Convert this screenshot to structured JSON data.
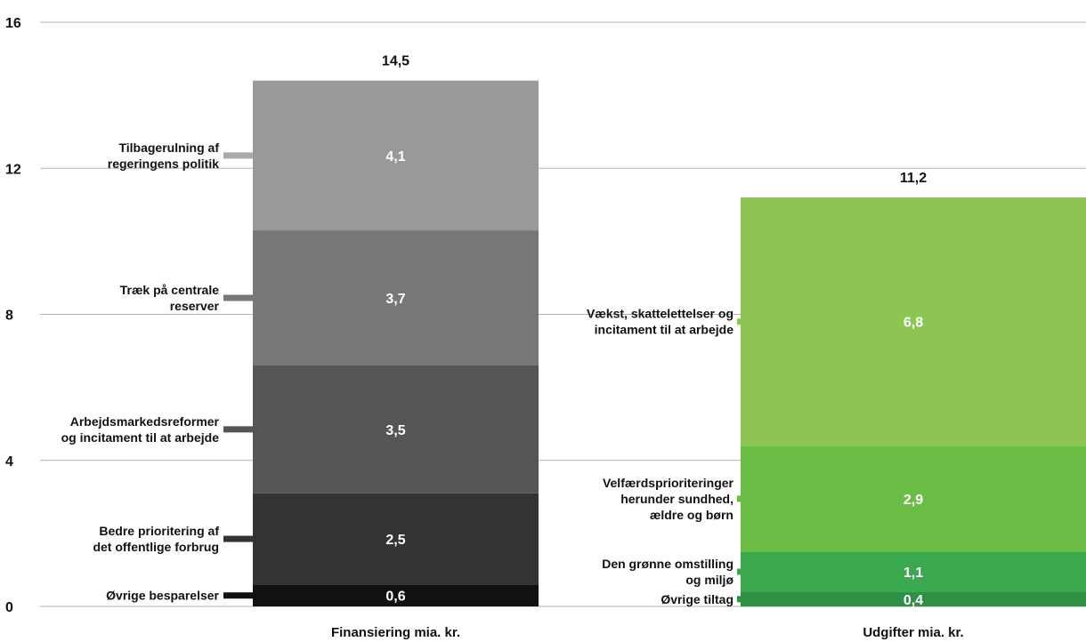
{
  "chart_data": {
    "type": "bar",
    "stacked": true,
    "ylim": [
      0,
      16
    ],
    "yticks": [
      0,
      4,
      8,
      12,
      16
    ],
    "grid": true,
    "bars": [
      {
        "category": "Finansiering mia. kr.",
        "total_label": "14,5",
        "segments": [
          {
            "name_lines": [
              "Øvrige besparelser"
            ],
            "value": 0.6,
            "value_label": "0,6",
            "color": "#111111",
            "marker_color": "#111111"
          },
          {
            "name_lines": [
              "Bedre prioritering af",
              "det offentlige forbrug"
            ],
            "value": 2.5,
            "value_label": "2,5",
            "color": "#333333",
            "marker_color": "#333333"
          },
          {
            "name_lines": [
              "Arbejdsmarkedsreformer",
              "og incitament til at arbejde"
            ],
            "value": 3.5,
            "value_label": "3,5",
            "color": "#555555",
            "marker_color": "#555555"
          },
          {
            "name_lines": [
              "Træk på centrale",
              "reserver"
            ],
            "value": 3.7,
            "value_label": "3,7",
            "color": "#777777",
            "marker_color": "#777777"
          },
          {
            "name_lines": [
              "Tilbagerulning af",
              "regeringens politik"
            ],
            "value": 4.1,
            "value_label": "4,1",
            "color": "#999999",
            "marker_color": "#aaaaaa"
          }
        ]
      },
      {
        "category": "Udgifter mia. kr.",
        "total_label": "11,2",
        "segments": [
          {
            "name_lines": [
              "Øvrige tiltag"
            ],
            "value": 0.4,
            "value_label": "0,4",
            "color": "#2f8f47",
            "marker_color": "#2f8f47"
          },
          {
            "name_lines": [
              "Den grønne omstilling",
              "og miljø"
            ],
            "value": 1.1,
            "value_label": "1,1",
            "color": "#3aa84e",
            "marker_color": "#3aa84e"
          },
          {
            "name_lines": [
              "Velfærdsprioriteringer",
              "herunder sundhed,",
              "ældre og børn"
            ],
            "value": 2.9,
            "value_label": "2,9",
            "color": "#6abd45",
            "marker_color": "#6abd45"
          },
          {
            "name_lines": [
              "Vækst, skattelettelser og",
              "incitament til at arbejde"
            ],
            "value": 6.8,
            "value_label": "6,8",
            "color": "#8dc553",
            "marker_color": "#8dc553"
          }
        ]
      }
    ]
  }
}
